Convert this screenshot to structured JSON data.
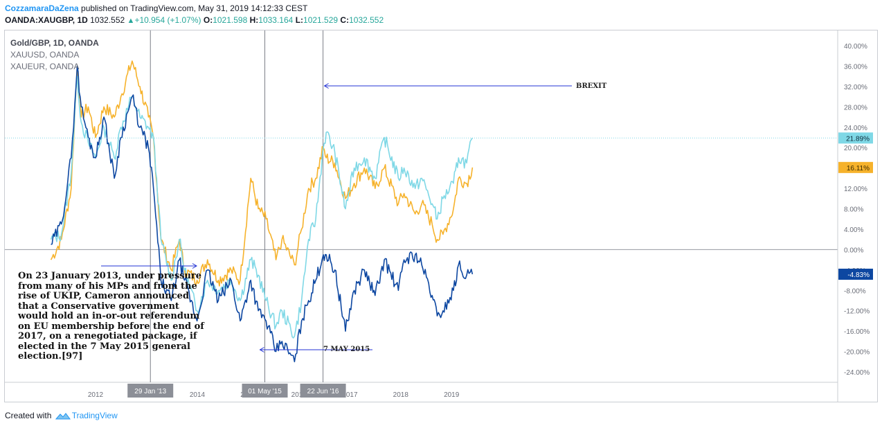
{
  "header": {
    "author": "CozzamaraDaZena",
    "published": " published on TradingView.com, May 31, 2019 14:12:33 CEST",
    "symbol": "OANDA:XAUGBP, 1D",
    "price": "1032.552",
    "change": "+10.954 (+1.07%)",
    "open_label": "O:",
    "open": "1021.598",
    "high_label": "H:",
    "high": "1033.164",
    "low_label": "L:",
    "low": "1021.529",
    "close_label": "C:",
    "close": "1032.552"
  },
  "legend": {
    "main": "Gold/GBP, 1D, OANDA",
    "s1": "XAUUSD, OANDA",
    "s2": "XAUEUR, OANDA"
  },
  "annotation": {
    "text": "On 23 January 2013, under pressure from many of his MPs and from the rise of UKIP, Cameron announced that a Conservative government would hold an in-or-out referendum on EU membership before the end of 2017, on a renegotiated package, if elected in the 7 May 2015 general election.[97]"
  },
  "footer": {
    "created": "Created with",
    "brand": "TradingView"
  },
  "colors": {
    "xaugbp": "#0d47a1",
    "xauusd": "#f6b22b",
    "xaueur": "#7fd8e6",
    "axis": "#6b6e78",
    "grid": "#e9eaed",
    "arrow": "#2232d4"
  },
  "chart_data": {
    "type": "line",
    "title": "Gold/GBP, 1D, OANDA",
    "y_unit": "%",
    "ylim": [
      -26,
      44
    ],
    "y_ticks": [
      40,
      36,
      32,
      28,
      24,
      20,
      16,
      12,
      8,
      4,
      0,
      -4,
      -8,
      -12,
      -16,
      -20,
      -24
    ],
    "y_tick_labels": [
      "40.00%",
      "36.00%",
      "32.00%",
      "28.00%",
      "24.00%",
      "20.00%",
      "16.00%",
      "12.00%",
      "8.00%",
      "4.00%",
      "0.00%",
      "-4.00%",
      "-8.00%",
      "-12.00%",
      "-16.00%",
      "-20.00%",
      "-24.00%"
    ],
    "x_ticks": [
      {
        "label": "2012",
        "date": "2012-01-01"
      },
      {
        "label": "2014",
        "date": "2014-01-01"
      },
      {
        "label": "2015",
        "date": "2015-01-01"
      },
      {
        "label": "2016",
        "date": "2016-01-01"
      },
      {
        "label": "2017",
        "date": "2017-01-01"
      },
      {
        "label": "2018",
        "date": "2018-01-01"
      },
      {
        "label": "2019",
        "date": "2019-01-01"
      }
    ],
    "event_lines": [
      {
        "label": "29 Jan '13",
        "date": "2013-01-29"
      },
      {
        "label": "01 May '15",
        "date": "2015-05-01"
      },
      {
        "label": "22 Jun '16",
        "date": "2016-06-22"
      }
    ],
    "annotations": [
      {
        "text": "BREXIT",
        "date": "2016-06-22",
        "y": 32.3
      },
      {
        "text": "7 MAY 2015",
        "date": "2015-05-01",
        "y": -20
      }
    ],
    "last_value_labels": [
      {
        "series": "XAUEUR",
        "value": 21.89,
        "label": "21.89%"
      },
      {
        "series": "XAUUSD",
        "value": 16.11,
        "label": "16.11%"
      },
      {
        "series": "XAUGBP",
        "value": -4.83,
        "label": "-4.83%"
      }
    ],
    "series": [
      {
        "name": "Gold/GBP, 1D, OANDA",
        "key": "xaugbp",
        "x": [
          "2011-02-15",
          "2011-05-01",
          "2011-07-10",
          "2011-08-22",
          "2011-09-20",
          "2011-11-10",
          "2012-01-01",
          "2012-03-01",
          "2012-05-15",
          "2012-07-01",
          "2012-09-20",
          "2012-11-15",
          "2013-01-15",
          "2013-02-20",
          "2013-04-15",
          "2013-06-28",
          "2013-08-25",
          "2013-10-01",
          "2013-12-30",
          "2014-03-15",
          "2014-06-01",
          "2014-09-01",
          "2014-11-05",
          "2015-01-20",
          "2015-03-15",
          "2015-05-10",
          "2015-07-20",
          "2015-09-01",
          "2015-11-30",
          "2016-01-20",
          "2016-03-10",
          "2016-05-01",
          "2016-06-24",
          "2016-07-15",
          "2016-09-15",
          "2016-11-30",
          "2017-02-01",
          "2017-04-15",
          "2017-07-01",
          "2017-09-05",
          "2017-12-15",
          "2018-01-25",
          "2018-04-15",
          "2018-06-01",
          "2018-08-15",
          "2018-09-20",
          "2018-11-01",
          "2019-01-15",
          "2019-02-20",
          "2019-04-20",
          "2019-05-31"
        ],
        "values": [
          1,
          5,
          18,
          36,
          28,
          22,
          18,
          26,
          14,
          22,
          30,
          24,
          20,
          12,
          -6,
          -10,
          -2,
          -6,
          -14,
          -4,
          -10,
          -6,
          -14,
          -6,
          -12,
          -14,
          -20,
          -18,
          -22,
          -14,
          -10,
          -6,
          -1,
          -1,
          -4,
          -16,
          -8,
          -4,
          -9,
          -2,
          -8,
          -2,
          -1,
          -3,
          -9,
          -13,
          -12,
          -8,
          -3,
          -5,
          -4.83
        ]
      },
      {
        "name": "XAUUSD, OANDA",
        "key": "xauusd",
        "x": [
          "2011-02-15",
          "2011-05-01",
          "2011-07-10",
          "2011-08-22",
          "2011-09-20",
          "2011-11-10",
          "2012-01-01",
          "2012-03-01",
          "2012-05-15",
          "2012-07-01",
          "2012-09-20",
          "2012-11-15",
          "2013-01-15",
          "2013-02-20",
          "2013-04-15",
          "2013-06-28",
          "2013-08-25",
          "2013-10-01",
          "2013-12-30",
          "2014-03-15",
          "2014-06-01",
          "2014-09-01",
          "2014-11-05",
          "2015-01-20",
          "2015-03-15",
          "2015-05-10",
          "2015-07-20",
          "2015-09-01",
          "2015-11-30",
          "2016-01-20",
          "2016-03-10",
          "2016-05-01",
          "2016-06-24",
          "2016-07-15",
          "2016-09-15",
          "2016-11-30",
          "2017-02-01",
          "2017-04-15",
          "2017-07-01",
          "2017-09-05",
          "2017-12-15",
          "2018-01-25",
          "2018-04-15",
          "2018-06-01",
          "2018-08-15",
          "2018-09-20",
          "2018-11-01",
          "2019-01-15",
          "2019-02-20",
          "2019-04-20",
          "2019-05-31"
        ],
        "values": [
          -2,
          2,
          12,
          36,
          26,
          28,
          22,
          28,
          26,
          30,
          37,
          32,
          26,
          22,
          2,
          -4,
          2,
          -4,
          -6,
          -2,
          -6,
          -4,
          -6,
          14,
          8,
          6,
          -2,
          2,
          -3,
          4,
          12,
          14,
          20,
          18,
          17,
          10,
          13,
          16,
          12,
          16,
          9,
          11,
          7,
          9,
          5,
          2,
          3,
          8,
          14,
          13,
          16.11
        ]
      },
      {
        "name": "XAUEUR, OANDA",
        "key": "xaueur",
        "x": [
          "2011-02-15",
          "2011-05-01",
          "2011-07-10",
          "2011-08-22",
          "2011-09-20",
          "2011-11-10",
          "2012-01-01",
          "2012-03-01",
          "2012-05-15",
          "2012-07-01",
          "2012-09-20",
          "2012-11-15",
          "2013-01-15",
          "2013-02-20",
          "2013-04-15",
          "2013-06-28",
          "2013-08-25",
          "2013-10-01",
          "2013-12-30",
          "2014-03-15",
          "2014-06-01",
          "2014-09-01",
          "2014-11-05",
          "2015-01-20",
          "2015-03-15",
          "2015-05-10",
          "2015-07-20",
          "2015-09-01",
          "2015-11-30",
          "2016-01-20",
          "2016-03-10",
          "2016-05-01",
          "2016-06-24",
          "2016-07-15",
          "2016-09-15",
          "2016-11-30",
          "2017-02-01",
          "2017-04-15",
          "2017-07-01",
          "2017-09-05",
          "2017-12-15",
          "2018-01-25",
          "2018-04-15",
          "2018-06-01",
          "2018-08-15",
          "2018-09-20",
          "2018-11-01",
          "2019-01-15",
          "2019-02-20",
          "2019-04-20",
          "2019-05-31"
        ],
        "values": [
          2,
          3,
          15,
          34,
          25,
          21,
          18,
          24,
          18,
          24,
          30,
          26,
          24,
          22,
          2,
          -6,
          2,
          -4,
          -12,
          -6,
          -8,
          -6,
          -10,
          -2,
          -5,
          -10,
          -15,
          -12,
          -17,
          -10,
          2,
          6,
          20,
          23,
          19,
          8,
          16,
          18,
          14,
          22,
          14,
          16,
          12,
          14,
          9,
          6,
          10,
          13,
          18,
          17,
          21.89
        ]
      }
    ]
  }
}
